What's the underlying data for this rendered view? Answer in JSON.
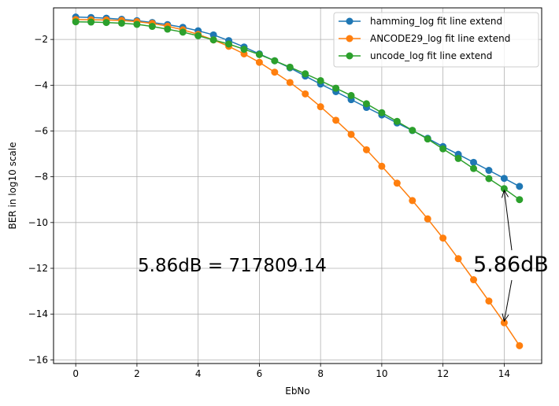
{
  "chart_data": {
    "type": "line",
    "xlabel": "EbNo",
    "ylabel": "BER in log10 scale",
    "xlim": [
      -0.725,
      15.225
    ],
    "ylim": [
      -16.16,
      -0.62
    ],
    "xticks": [
      0,
      2,
      4,
      6,
      8,
      10,
      12,
      14
    ],
    "yticks": [
      -16,
      -14,
      -12,
      -10,
      -8,
      -6,
      -4,
      -2
    ],
    "xtick_labels": [
      "0",
      "2",
      "4",
      "6",
      "8",
      "10",
      "12",
      "14"
    ],
    "ytick_labels": [
      "−16",
      "−14",
      "−12",
      "−10",
      "−8",
      "−6",
      "−4",
      "−2"
    ],
    "grid": true,
    "legend_position": "top-right",
    "x": [
      0,
      0.5,
      1,
      1.5,
      2,
      2.5,
      3,
      3.5,
      4,
      4.5,
      5,
      5.5,
      6,
      6.5,
      7,
      7.5,
      8,
      8.5,
      9,
      9.5,
      10,
      10.5,
      11,
      11.5,
      12,
      12.5,
      13,
      13.5,
      14,
      14.5
    ],
    "series": [
      {
        "name": "hamming_log fit line extend",
        "color": "#1f77b4",
        "values": [
          -1.02,
          -1.04,
          -1.07,
          -1.12,
          -1.18,
          -1.26,
          -1.35,
          -1.47,
          -1.62,
          -1.8,
          -2.05,
          -2.33,
          -2.63,
          -2.93,
          -3.24,
          -3.6,
          -3.95,
          -4.28,
          -4.63,
          -4.97,
          -5.3,
          -5.65,
          -5.98,
          -6.32,
          -6.68,
          -7.02,
          -7.37,
          -7.72,
          -8.07,
          -8.42
        ]
      },
      {
        "name": "ANCODE29_log fit line extend",
        "color": "#ff7f0e",
        "values": [
          -1.13,
          -1.14,
          -1.15,
          -1.17,
          -1.22,
          -1.3,
          -1.42,
          -1.58,
          -1.78,
          -2.02,
          -2.3,
          -2.63,
          -3.0,
          -3.43,
          -3.88,
          -4.38,
          -4.94,
          -5.53,
          -6.15,
          -6.82,
          -7.54,
          -8.28,
          -9.04,
          -9.84,
          -10.68,
          -11.58,
          -12.5,
          -13.43,
          -14.38,
          -15.38
        ]
      },
      {
        "name": "uncode_log fit line extend",
        "color": "#2ca02c",
        "values": [
          -1.23,
          -1.24,
          -1.26,
          -1.29,
          -1.34,
          -1.43,
          -1.55,
          -1.68,
          -1.84,
          -2.02,
          -2.2,
          -2.43,
          -2.66,
          -2.93,
          -3.21,
          -3.5,
          -3.8,
          -4.13,
          -4.45,
          -4.81,
          -5.2,
          -5.58,
          -5.97,
          -6.35,
          -6.78,
          -7.2,
          -7.64,
          -8.08,
          -8.52,
          -9.0
        ]
      }
    ],
    "annotations": [
      {
        "text": "5.86dB  = 717809.14"
      },
      {
        "text": "5.86dB"
      }
    ]
  }
}
